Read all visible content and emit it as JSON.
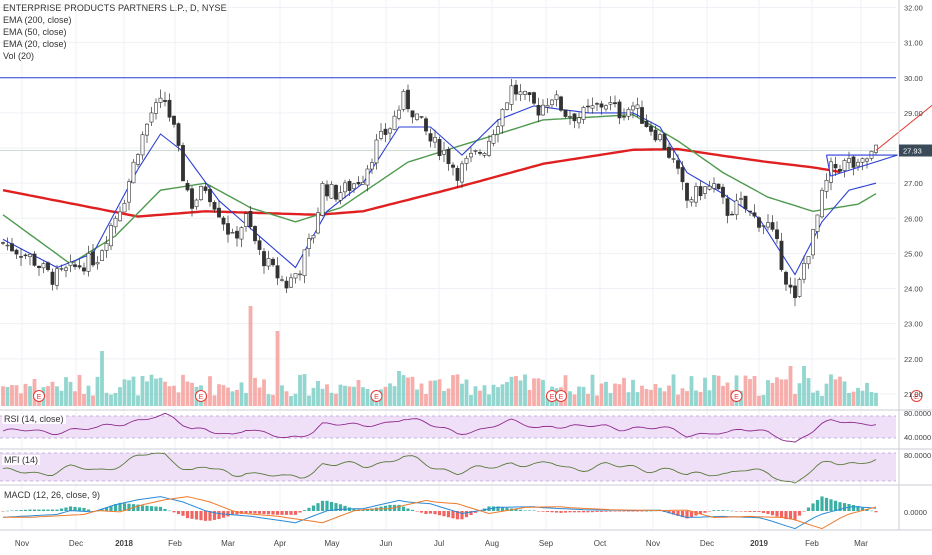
{
  "header": {
    "title": "ENTERPRISE PRODUCTS PARTNERS L.P., D, NYSE",
    "indicators": [
      "EMA (200, close)",
      "EMA (50, close)",
      "EMA (20, close)",
      "Vol (20)"
    ]
  },
  "panes": {
    "rsi_label": "RSI (14, close)",
    "mfi_label": "MFI (14)",
    "macd_label": "MACD (12, 26, close, 9)",
    "rsi_ticks": [
      "80.0000",
      "40.0000"
    ],
    "mfi_ticks": [
      "80.0000"
    ],
    "macd_ticks": [
      "0.0000"
    ]
  },
  "colors": {
    "up": "#26a69a",
    "down": "#ef5350",
    "ema200": "#e02020",
    "ema50": "#4f9a4f",
    "ema20": "#2b3fd6",
    "resistance": "#2b3fd6",
    "rsi": "#8e2a8e",
    "mfi": "#5a7a3a",
    "macd": "#2a8ad6",
    "signal": "#f07a2a",
    "band": "#efe0f7",
    "arrow": "#e53935",
    "price_tag": "#3a4a58",
    "earnings": "#e53935"
  },
  "chart_data": {
    "type": "candlestick",
    "title": "ENTERPRISE PRODUCTS PARTNERS L.P., D, NYSE",
    "x_ticks": [
      "Nov",
      "Dec",
      "2018",
      "Feb",
      "Mar",
      "Apr",
      "May",
      "Jun",
      "Jul",
      "Aug",
      "Sep",
      "Oct",
      "Nov",
      "Dec",
      "2019",
      "Feb",
      "Mar"
    ],
    "y_ticks": [
      "32.00",
      "31.00",
      "30.00",
      "29.00",
      "28.00",
      "27.00",
      "26.00",
      "25.00",
      "24.00",
      "23.00",
      "22.00",
      "21.00"
    ],
    "ylim": [
      20.6,
      32.1
    ],
    "last_price": "27.93",
    "resistance_level": 30.0,
    "price_path": [
      [
        0,
        25.3
      ],
      [
        6,
        24.9
      ],
      [
        11,
        24.3
      ],
      [
        16,
        24.6
      ],
      [
        21,
        24.9
      ],
      [
        24,
        25.8
      ],
      [
        27,
        26.6
      ],
      [
        30,
        28.0
      ],
      [
        33,
        29.0
      ],
      [
        36,
        29.35
      ],
      [
        38,
        28.5
      ],
      [
        40,
        27.2
      ],
      [
        42,
        26.4
      ],
      [
        45,
        26.9
      ],
      [
        48,
        26.2
      ],
      [
        51,
        25.4
      ],
      [
        54,
        26.0
      ],
      [
        57,
        25.0
      ],
      [
        60,
        24.5
      ],
      [
        63,
        24.1
      ],
      [
        66,
        24.6
      ],
      [
        69,
        25.6
      ],
      [
        71,
        26.9
      ],
      [
        74,
        26.7
      ],
      [
        77,
        26.9
      ],
      [
        80,
        27.2
      ],
      [
        83,
        28.1
      ],
      [
        86,
        28.6
      ],
      [
        89,
        29.4
      ],
      [
        92,
        28.9
      ],
      [
        95,
        28.2
      ],
      [
        98,
        27.9
      ],
      [
        101,
        27.3
      ],
      [
        104,
        27.7
      ],
      [
        107,
        28.0
      ],
      [
        110,
        28.8
      ],
      [
        113,
        29.7
      ],
      [
        116,
        29.4
      ],
      [
        119,
        29.1
      ],
      [
        122,
        29.5
      ],
      [
        125,
        29.0
      ],
      [
        128,
        28.9
      ],
      [
        131,
        29.1
      ],
      [
        134,
        29.3
      ],
      [
        137,
        29.0
      ],
      [
        140,
        29.2
      ],
      [
        143,
        28.7
      ],
      [
        146,
        28.3
      ],
      [
        149,
        27.6
      ],
      [
        152,
        26.5
      ],
      [
        155,
        26.8
      ],
      [
        158,
        26.9
      ],
      [
        161,
        26.2
      ],
      [
        164,
        26.4
      ],
      [
        167,
        26.0
      ],
      [
        170,
        25.8
      ],
      [
        172,
        25.2
      ],
      [
        174,
        24.3
      ],
      [
        176,
        23.6
      ],
      [
        178,
        24.7
      ],
      [
        180,
        25.5
      ],
      [
        182,
        26.6
      ],
      [
        184,
        27.4
      ],
      [
        186,
        27.5
      ],
      [
        188,
        27.6
      ],
      [
        190,
        27.4
      ],
      [
        192,
        27.7
      ],
      [
        194,
        27.93
      ]
    ],
    "ema200": [
      [
        0,
        26.8
      ],
      [
        30,
        26.05
      ],
      [
        45,
        26.2
      ],
      [
        70,
        26.1
      ],
      [
        80,
        26.2
      ],
      [
        100,
        26.85
      ],
      [
        120,
        27.55
      ],
      [
        140,
        27.95
      ],
      [
        150,
        27.97
      ],
      [
        160,
        27.78
      ],
      [
        170,
        27.6
      ],
      [
        180,
        27.45
      ],
      [
        186,
        27.32
      ]
    ],
    "ema50": [
      [
        0,
        26.1
      ],
      [
        15,
        24.7
      ],
      [
        25,
        25.5
      ],
      [
        35,
        26.8
      ],
      [
        45,
        27.0
      ],
      [
        55,
        26.3
      ],
      [
        65,
        25.9
      ],
      [
        75,
        26.3
      ],
      [
        90,
        27.6
      ],
      [
        105,
        28.2
      ],
      [
        120,
        28.8
      ],
      [
        140,
        28.95
      ],
      [
        150,
        28.2
      ],
      [
        160,
        27.3
      ],
      [
        170,
        26.6
      ],
      [
        180,
        26.2
      ],
      [
        190,
        26.4
      ],
      [
        194,
        26.7
      ]
    ],
    "ema20": [
      [
        0,
        25.4
      ],
      [
        12,
        24.6
      ],
      [
        20,
        25.0
      ],
      [
        30,
        27.4
      ],
      [
        35,
        28.4
      ],
      [
        40,
        27.9
      ],
      [
        48,
        26.5
      ],
      [
        56,
        25.6
      ],
      [
        65,
        24.6
      ],
      [
        72,
        26.2
      ],
      [
        80,
        27.0
      ],
      [
        88,
        28.6
      ],
      [
        95,
        28.6
      ],
      [
        102,
        27.8
      ],
      [
        110,
        28.8
      ],
      [
        118,
        29.2
      ],
      [
        130,
        29.0
      ],
      [
        140,
        29.0
      ],
      [
        146,
        28.6
      ],
      [
        152,
        27.3
      ],
      [
        160,
        26.7
      ],
      [
        168,
        26.0
      ],
      [
        176,
        24.4
      ],
      [
        182,
        25.9
      ],
      [
        188,
        26.8
      ],
      [
        194,
        27.0
      ]
    ],
    "trend_arrow": {
      "from": [
        194,
        27.93
      ],
      "to": [
        214,
        29.95
      ]
    },
    "earnings_markers_x": [
      8,
      44,
      83,
      122,
      124,
      163,
      203
    ]
  }
}
